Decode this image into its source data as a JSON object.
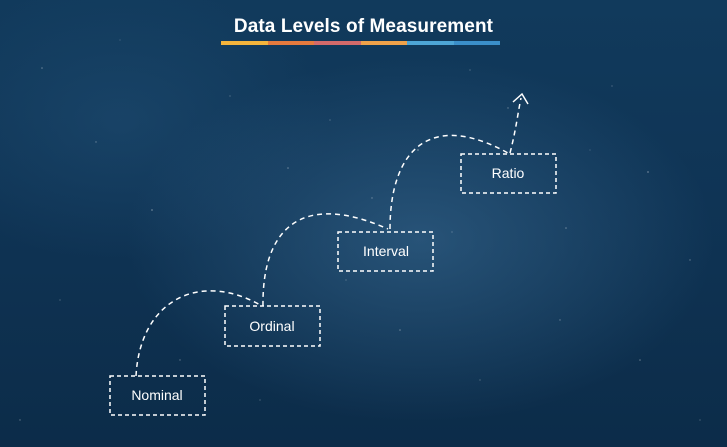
{
  "title": "Data Levels of Measurement",
  "title_bar_colors": [
    "#f4b43c",
    "#e57a3e",
    "#d36a6a",
    "#f0a24a",
    "#4ea6d6",
    "#3b8fc9"
  ],
  "levels": [
    {
      "label": "Nominal"
    },
    {
      "label": "Ordinal"
    },
    {
      "label": "Interval"
    },
    {
      "label": "Ratio"
    }
  ],
  "colors": {
    "background": "#0f3455",
    "line": "#ffffff",
    "text": "#ffffff"
  }
}
